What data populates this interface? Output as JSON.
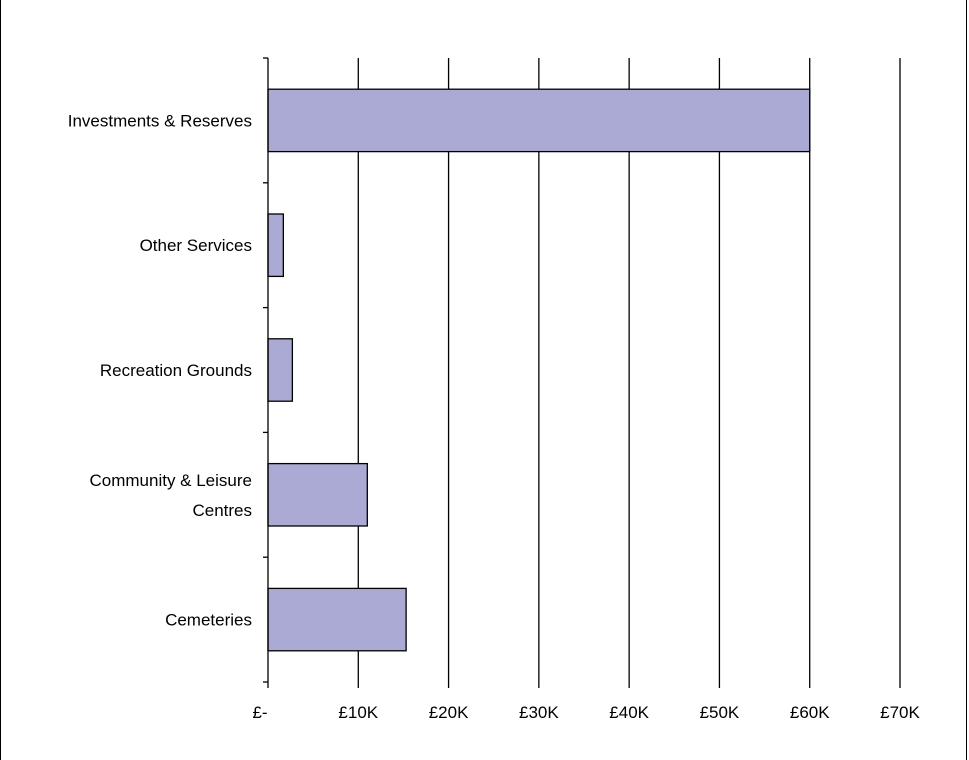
{
  "chart_data": {
    "type": "bar",
    "orientation": "horizontal",
    "categories": [
      "Investments & Reserves",
      "Other Services",
      "Recreation Grounds",
      "Community & Leisure Centres",
      "Cemeteries"
    ],
    "category_label_lines": [
      [
        "Investments & Reserves"
      ],
      [
        "Other Services"
      ],
      [
        "Recreation Grounds"
      ],
      [
        "Community & Leisure",
        "Centres"
      ],
      [
        "Cemeteries"
      ]
    ],
    "values": [
      60000,
      1700,
      2700,
      11000,
      15300
    ],
    "xlim": [
      0,
      70000
    ],
    "x_ticks": [
      0,
      10000,
      20000,
      30000,
      40000,
      50000,
      60000,
      70000
    ],
    "x_tick_labels": [
      "£-",
      "£10K",
      "£20K",
      "£30K",
      "£40K",
      "£50K",
      "£60K",
      "£70K"
    ],
    "grid": "vertical",
    "bar_color": "#aaaad4",
    "bar_edge_color": "#000000",
    "title": "",
    "xlabel": "",
    "ylabel": ""
  }
}
